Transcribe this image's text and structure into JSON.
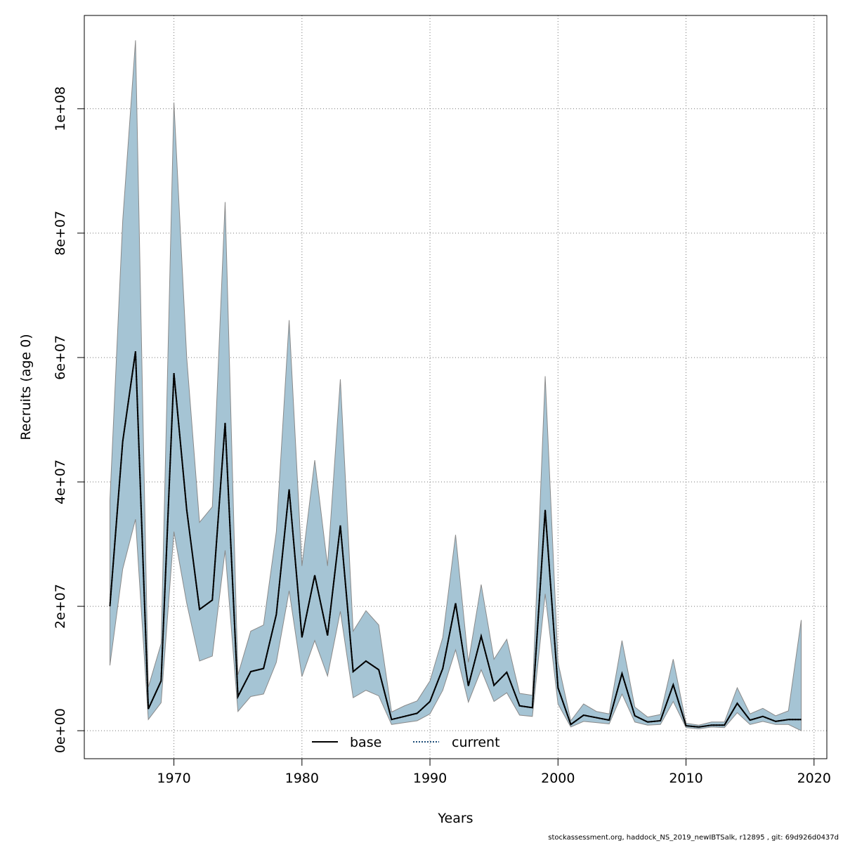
{
  "chart_data": {
    "type": "line",
    "title": "",
    "xlabel": "Years",
    "ylabel": "Recruits (age 0)",
    "xlim": [
      1963,
      2021
    ],
    "ylim": [
      -4500000,
      115000000
    ],
    "x_ticks": [
      1970,
      1980,
      1990,
      2000,
      2010,
      2020
    ],
    "x_tick_labels": [
      "1970",
      "1980",
      "1990",
      "2000",
      "2010",
      "2020"
    ],
    "y_ticks": [
      0,
      20000000,
      40000000,
      60000000,
      80000000,
      100000000
    ],
    "y_tick_labels": [
      "0e+00",
      "2e+07",
      "4e+07",
      "6e+07",
      "8e+07",
      "1e+08"
    ],
    "grid": true,
    "legend_position": "bottom-center",
    "years": [
      1965,
      1966,
      1967,
      1968,
      1969,
      1970,
      1971,
      1972,
      1973,
      1974,
      1975,
      1976,
      1977,
      1978,
      1979,
      1980,
      1981,
      1982,
      1983,
      1984,
      1985,
      1986,
      1987,
      1988,
      1989,
      1990,
      1991,
      1992,
      1993,
      1994,
      1995,
      1996,
      1997,
      1998,
      1999,
      2000,
      2001,
      2002,
      2003,
      2004,
      2005,
      2006,
      2007,
      2008,
      2009,
      2010,
      2011,
      2012,
      2013,
      2014,
      2015,
      2016,
      2017,
      2018,
      2019
    ],
    "band": {
      "color": "#a5c4d4",
      "upper": [
        37000000,
        82000000,
        111000000,
        7000000,
        14000000,
        101000000,
        60000000,
        33500000,
        36000000,
        85000000,
        9000000,
        16000000,
        17000000,
        32000000,
        66000000,
        26500000,
        43500000,
        26500000,
        56500000,
        16000000,
        19300000,
        17000000,
        3000000,
        4000000,
        4800000,
        8000000,
        15000000,
        31500000,
        11000000,
        23500000,
        11500000,
        14700000,
        6000000,
        5700000,
        57000000,
        11000000,
        1600000,
        4300000,
        3100000,
        2700000,
        14500000,
        3800000,
        2200000,
        2600000,
        11500000,
        1200000,
        900000,
        1400000,
        1400000,
        6900000,
        2700000,
        3600000,
        2400000,
        3200000,
        17800000
      ],
      "lower": [
        10500000,
        26000000,
        34000000,
        1800000,
        4500000,
        32000000,
        20500000,
        11200000,
        12000000,
        29000000,
        3100000,
        5500000,
        5900000,
        11000000,
        22500000,
        8700000,
        14500000,
        8800000,
        19200000,
        5300000,
        6500000,
        5600000,
        1000000,
        1300000,
        1600000,
        2700000,
        6500000,
        13000000,
        4600000,
        9800000,
        4700000,
        6100000,
        2500000,
        2300000,
        22000000,
        4300000,
        600000,
        1500000,
        1300000,
        1100000,
        5900000,
        1400000,
        900000,
        1000000,
        4700000,
        500000,
        300000,
        600000,
        500000,
        2900000,
        1000000,
        1500000,
        1000000,
        1000000,
        0
      ]
    },
    "series": [
      {
        "name": "base",
        "color": "#000000",
        "style": "solid",
        "values": [
          20000000,
          46500000,
          61000000,
          3500000,
          8000000,
          57500000,
          35500000,
          19500000,
          21000000,
          49500000,
          5500000,
          9500000,
          10000000,
          18700000,
          38800000,
          15000000,
          25000000,
          15300000,
          33000000,
          9500000,
          11200000,
          9800000,
          1800000,
          2300000,
          2800000,
          4700000,
          10000000,
          20500000,
          7200000,
          15200000,
          7300000,
          9400000,
          4000000,
          3700000,
          35500000,
          6900000,
          1000000,
          2500000,
          2100000,
          1700000,
          9200000,
          2400000,
          1400000,
          1600000,
          7400000,
          800000,
          600000,
          900000,
          900000,
          4400000,
          1700000,
          2300000,
          1500000,
          1800000,
          1800000
        ]
      },
      {
        "name": "current",
        "color": "#1f4e79",
        "style": "dotted",
        "values": [
          20000000,
          46500000,
          61000000,
          3500000,
          8000000,
          57500000,
          35500000,
          19500000,
          21000000,
          49500000,
          5500000,
          9500000,
          10000000,
          18700000,
          38800000,
          15000000,
          25000000,
          15300000,
          33000000,
          9500000,
          11200000,
          9800000,
          1800000,
          2300000,
          2800000,
          4700000,
          10000000,
          20500000,
          7200000,
          15200000,
          7300000,
          9400000,
          4000000,
          3700000,
          35500000,
          6900000,
          1000000,
          2500000,
          2100000,
          1700000,
          9200000,
          2400000,
          1400000,
          1600000,
          7400000,
          800000,
          600000,
          900000,
          900000,
          4400000,
          1700000,
          2300000,
          1500000,
          1800000,
          1800000
        ]
      }
    ]
  },
  "footer": {
    "text": "stockassessment.org, haddock_NS_2019_newIBTSalk, r12895 , git: 69d926d0437d"
  }
}
